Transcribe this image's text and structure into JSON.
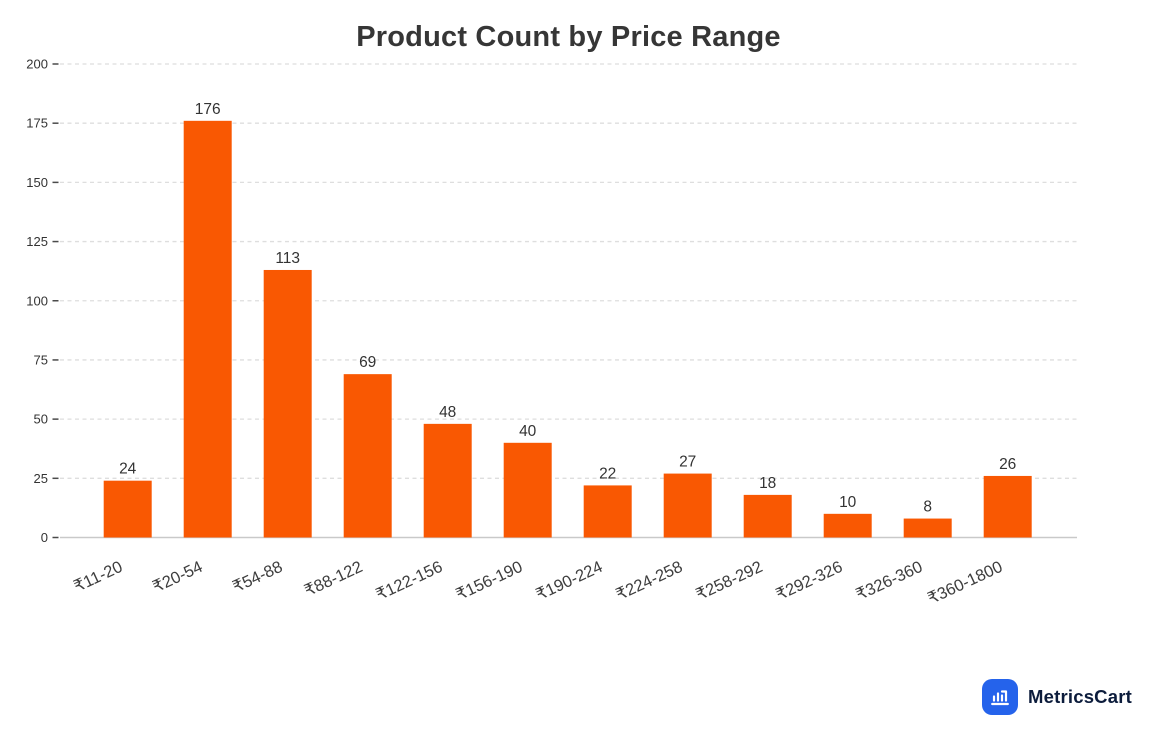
{
  "chart_data": {
    "type": "bar",
    "title": "Product Count by Price Range",
    "categories": [
      "₹11-20",
      "₹20-54",
      "₹54-88",
      "₹88-122",
      "₹122-156",
      "₹156-190",
      "₹190-224",
      "₹224-258",
      "₹258-292",
      "₹292-326",
      "₹326-360",
      "₹360-1800"
    ],
    "values": [
      24,
      176,
      113,
      69,
      48,
      40,
      22,
      27,
      18,
      10,
      8,
      26
    ],
    "xlabel": "",
    "ylabel": "",
    "ylim": [
      0,
      200
    ],
    "ytick_step": 25,
    "grid": "horizontal-dashed",
    "value_labels": true,
    "legend": "none"
  },
  "colors": {
    "bar": "#F95802",
    "grid": "#dedede",
    "axis_line": "#c9c9c9",
    "tick": "#4a4a4a",
    "tick_label": "#333333",
    "value_label": "#333333",
    "x_label": "#3d3d3d",
    "title": "#363636"
  },
  "branding": {
    "name": "MetricsCart",
    "icon": "bar-chart-cart-icon",
    "icon_bg": "#2563eb",
    "text_color": "#0c1c3c"
  }
}
